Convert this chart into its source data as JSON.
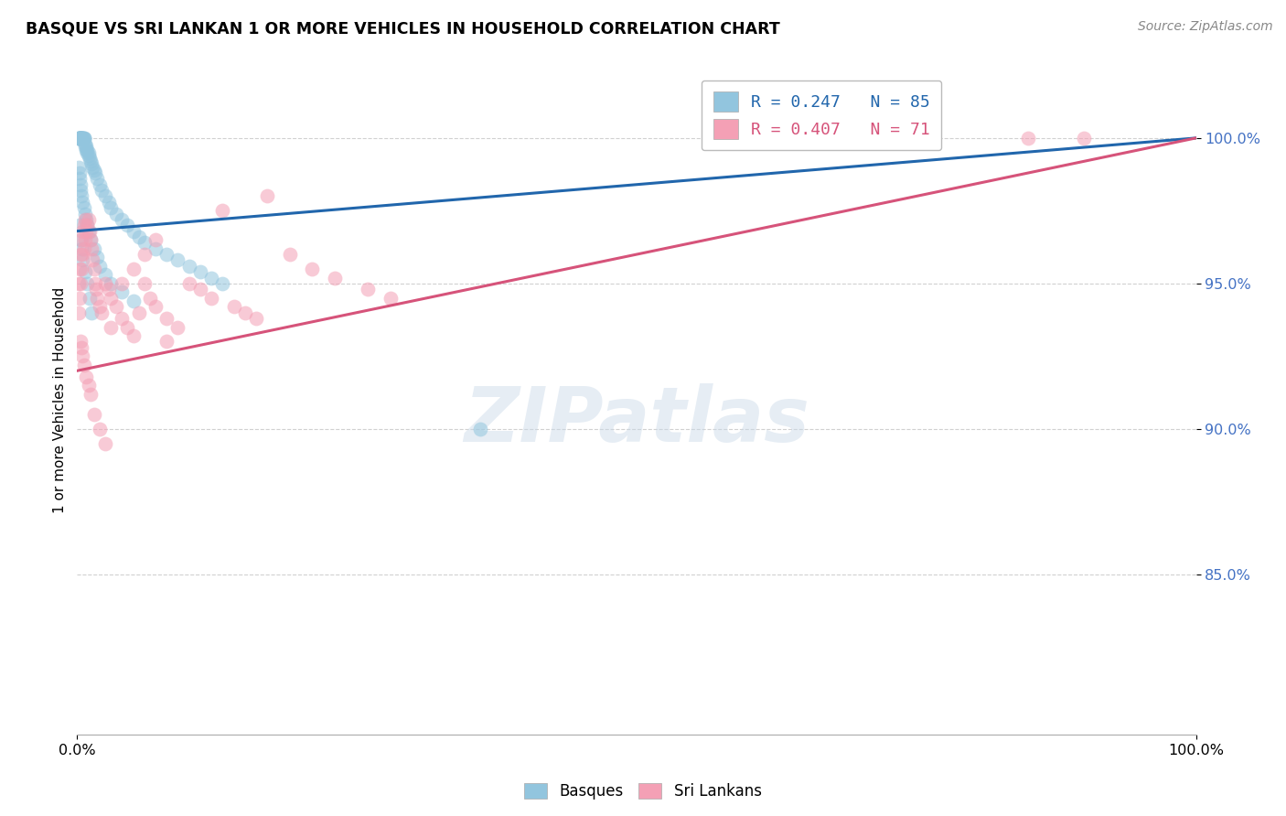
{
  "title": "BASQUE VS SRI LANKAN 1 OR MORE VEHICLES IN HOUSEHOLD CORRELATION CHART",
  "source": "Source: ZipAtlas.com",
  "ylabel": "1 or more Vehicles in Household",
  "blue_color": "#92c5de",
  "pink_color": "#f4a0b5",
  "blue_line_color": "#2166ac",
  "pink_line_color": "#d6537a",
  "legend_blue": "R = 0.247   N = 85",
  "legend_pink": "R = 0.407   N = 71",
  "xmin": 0.0,
  "xmax": 1.0,
  "ymin": 0.795,
  "ymax": 1.025,
  "yticks": [
    0.85,
    0.9,
    0.95,
    1.0
  ],
  "ytick_labels": [
    "85.0%",
    "90.0%",
    "95.0%",
    "100.0%"
  ],
  "xtick_labels": [
    "0.0%",
    "100.0%"
  ],
  "marker_size": 130,
  "alpha": 0.55,
  "blue_trendline_x": [
    0.0,
    1.0
  ],
  "blue_trendline_y": [
    0.968,
    1.0
  ],
  "pink_trendline_x": [
    0.0,
    1.0
  ],
  "pink_trendline_y": [
    0.92,
    1.0
  ],
  "basque_x": [
    0.001,
    0.001,
    0.001,
    0.002,
    0.002,
    0.002,
    0.002,
    0.002,
    0.003,
    0.003,
    0.003,
    0.003,
    0.004,
    0.004,
    0.004,
    0.005,
    0.005,
    0.005,
    0.005,
    0.006,
    0.006,
    0.006,
    0.007,
    0.007,
    0.008,
    0.008,
    0.009,
    0.009,
    0.01,
    0.01,
    0.011,
    0.012,
    0.013,
    0.014,
    0.015,
    0.016,
    0.018,
    0.02,
    0.022,
    0.025,
    0.028,
    0.03,
    0.035,
    0.04,
    0.045,
    0.05,
    0.055,
    0.06,
    0.07,
    0.08,
    0.09,
    0.1,
    0.11,
    0.12,
    0.13,
    0.001,
    0.002,
    0.002,
    0.003,
    0.003,
    0.004,
    0.005,
    0.006,
    0.007,
    0.008,
    0.009,
    0.01,
    0.012,
    0.015,
    0.018,
    0.02,
    0.025,
    0.03,
    0.04,
    0.05,
    0.002,
    0.003,
    0.004,
    0.005,
    0.007,
    0.009,
    0.011,
    0.013,
    0.36
  ],
  "basque_y": [
    1.0,
    1.0,
    1.0,
    1.0,
    1.0,
    1.0,
    1.0,
    1.0,
    1.0,
    1.0,
    1.0,
    1.0,
    1.0,
    1.0,
    1.0,
    1.0,
    1.0,
    1.0,
    1.0,
    1.0,
    1.0,
    1.0,
    0.998,
    0.997,
    0.997,
    0.996,
    0.996,
    0.995,
    0.995,
    0.994,
    0.993,
    0.992,
    0.991,
    0.99,
    0.989,
    0.988,
    0.986,
    0.984,
    0.982,
    0.98,
    0.978,
    0.976,
    0.974,
    0.972,
    0.97,
    0.968,
    0.966,
    0.964,
    0.962,
    0.96,
    0.958,
    0.956,
    0.954,
    0.952,
    0.95,
    0.99,
    0.988,
    0.986,
    0.984,
    0.982,
    0.98,
    0.978,
    0.976,
    0.974,
    0.972,
    0.97,
    0.968,
    0.965,
    0.962,
    0.959,
    0.956,
    0.953,
    0.95,
    0.947,
    0.944,
    0.97,
    0.965,
    0.962,
    0.958,
    0.954,
    0.95,
    0.945,
    0.94,
    0.9
  ],
  "srilanka_x": [
    0.001,
    0.001,
    0.002,
    0.002,
    0.003,
    0.003,
    0.004,
    0.004,
    0.005,
    0.005,
    0.006,
    0.006,
    0.007,
    0.007,
    0.008,
    0.009,
    0.01,
    0.011,
    0.012,
    0.013,
    0.014,
    0.015,
    0.016,
    0.017,
    0.018,
    0.02,
    0.022,
    0.025,
    0.028,
    0.03,
    0.035,
    0.04,
    0.045,
    0.05,
    0.055,
    0.06,
    0.065,
    0.07,
    0.08,
    0.09,
    0.1,
    0.11,
    0.12,
    0.13,
    0.14,
    0.15,
    0.16,
    0.17,
    0.19,
    0.21,
    0.23,
    0.26,
    0.28,
    0.003,
    0.004,
    0.005,
    0.006,
    0.008,
    0.01,
    0.012,
    0.015,
    0.02,
    0.025,
    0.03,
    0.04,
    0.05,
    0.06,
    0.07,
    0.08,
    0.85,
    0.9
  ],
  "srilanka_y": [
    0.94,
    0.95,
    0.945,
    0.955,
    0.95,
    0.96,
    0.955,
    0.965,
    0.96,
    0.968,
    0.962,
    0.97,
    0.965,
    0.972,
    0.968,
    0.97,
    0.972,
    0.968,
    0.965,
    0.962,
    0.958,
    0.955,
    0.95,
    0.948,
    0.945,
    0.942,
    0.94,
    0.95,
    0.948,
    0.945,
    0.942,
    0.938,
    0.935,
    0.932,
    0.94,
    0.95,
    0.945,
    0.942,
    0.938,
    0.935,
    0.95,
    0.948,
    0.945,
    0.975,
    0.942,
    0.94,
    0.938,
    0.98,
    0.96,
    0.955,
    0.952,
    0.948,
    0.945,
    0.93,
    0.928,
    0.925,
    0.922,
    0.918,
    0.915,
    0.912,
    0.905,
    0.9,
    0.895,
    0.935,
    0.95,
    0.955,
    0.96,
    0.965,
    0.93,
    1.0,
    1.0
  ]
}
